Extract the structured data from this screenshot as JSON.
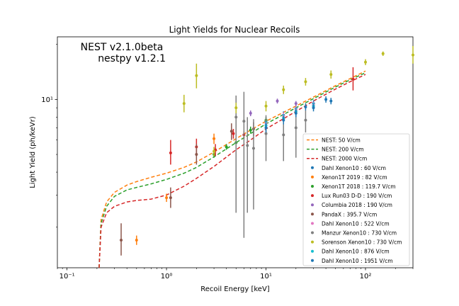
{
  "chart_data": {
    "type": "scatter",
    "title": "Light Yields for Nuclear Recoils",
    "xlabel": "Recoil Energy [keV]",
    "ylabel": "Light Yield (ph/keVr)",
    "xscale": "log",
    "yscale": "log",
    "xlim": [
      0.08,
      300
    ],
    "ylim": [
      1.2,
      22
    ],
    "x_ticks": [
      {
        "value": 0.1,
        "label": "10⁻¹"
      },
      {
        "value": 1,
        "label": "10⁰"
      },
      {
        "value": 10,
        "label": "10¹"
      },
      {
        "value": 100,
        "label": "10²"
      }
    ],
    "y_ticks": [
      {
        "value": 10,
        "label": "10¹"
      }
    ],
    "grid": false,
    "legend_position": "lower-right",
    "annotation": {
      "line1": "NEST v2.1.0beta",
      "line2": "nestpy v1.2.1"
    },
    "curves": [
      {
        "name": "NEST: 50 V/cm",
        "color": "#ff7f0e",
        "x": [
          0.21,
          0.22,
          0.25,
          0.3,
          0.4,
          0.5,
          0.7,
          1.0,
          1.5,
          2,
          3,
          5,
          7,
          10,
          20,
          30,
          50,
          70,
          100
        ],
        "y": [
          1.2,
          2.2,
          2.75,
          3.1,
          3.4,
          3.55,
          3.75,
          3.95,
          4.25,
          4.55,
          5.15,
          6.1,
          6.8,
          7.6,
          9.2,
          10.3,
          11.9,
          13.0,
          14.3
        ]
      },
      {
        "name": "NEST: 200 V/cm",
        "color": "#2ca02c",
        "x": [
          0.21,
          0.22,
          0.25,
          0.3,
          0.4,
          0.5,
          0.7,
          1.0,
          1.5,
          2,
          3,
          5,
          7,
          10,
          20,
          30,
          50,
          70,
          100
        ],
        "y": [
          1.2,
          2.1,
          2.6,
          2.95,
          3.2,
          3.3,
          3.45,
          3.65,
          3.95,
          4.25,
          4.85,
          5.8,
          6.5,
          7.35,
          9.0,
          10.1,
          11.7,
          12.8,
          14.0
        ]
      },
      {
        "name": "NEST: 2000 V/cm",
        "color": "#d62728",
        "x": [
          0.21,
          0.22,
          0.25,
          0.3,
          0.4,
          0.5,
          0.7,
          1.0,
          1.5,
          2,
          3,
          5,
          7,
          10,
          20,
          30,
          50,
          70,
          100
        ],
        "y": [
          1.2,
          2.0,
          2.4,
          2.6,
          2.75,
          2.8,
          2.85,
          3.0,
          3.35,
          3.7,
          4.3,
          5.3,
          6.0,
          6.9,
          8.6,
          9.8,
          11.4,
          12.5,
          13.7
        ]
      }
    ],
    "series": [
      {
        "name": "Dahl Xenon10 : 60 V/cm",
        "color": "#1f77b4",
        "points": [
          [
            10,
            7.6,
            7.2,
            8.0
          ],
          [
            15,
            8.2,
            7.8,
            8.6
          ],
          [
            20,
            8.9,
            8.5,
            9.3
          ],
          [
            25,
            9.1,
            8.7,
            9.5
          ],
          [
            30,
            9.5,
            9.1,
            9.9
          ],
          [
            40,
            10.0,
            9.6,
            10.4
          ]
        ]
      },
      {
        "name": "Xenon1T 2019 : 82 V/cm",
        "color": "#ff7f0e",
        "points": [
          [
            0.5,
            1.7,
            1.6,
            1.8
          ],
          [
            1.0,
            2.9,
            2.75,
            3.05
          ],
          [
            3.0,
            6.1,
            5.7,
            6.5
          ]
        ]
      },
      {
        "name": "Xenon1T 2018 : 119.7 V/cm",
        "color": "#2ca02c",
        "points": [
          [
            3.0,
            5.0,
            4.8,
            5.2
          ],
          [
            4.0,
            5.5,
            5.3,
            5.7
          ],
          [
            5.0,
            5.8,
            5.6,
            6.0
          ],
          [
            7.0,
            6.8,
            6.5,
            7.1
          ],
          [
            10.0,
            7.7,
            7.4,
            8.0
          ]
        ]
      },
      {
        "name": "Lux Run03 D-D : 190 V/cm",
        "color": "#d62728",
        "points": [
          [
            1.1,
            5.1,
            4.4,
            6.0
          ],
          [
            2.0,
            5.5,
            4.9,
            6.1
          ],
          [
            3.1,
            5.3,
            4.9,
            5.7
          ],
          [
            4.7,
            6.5,
            6.1,
            6.9
          ],
          [
            6.0,
            6.4,
            6.1,
            6.7
          ],
          [
            75,
            12.9,
            11.2,
            15.0
          ]
        ]
      },
      {
        "name": "Columbia 2018 : 190 V/cm",
        "color": "#9467bd",
        "points": [
          [
            7.0,
            8.4,
            8.1,
            8.7
          ],
          [
            13.0,
            9.8,
            9.5,
            10.1
          ],
          [
            20.0,
            9.5,
            9.2,
            9.8
          ]
        ]
      },
      {
        "name": "PandaX : 395.7 V/cm",
        "color": "#8c564b",
        "points": [
          [
            0.35,
            1.7,
            1.4,
            2.1
          ],
          [
            1.1,
            2.9,
            2.55,
            3.3
          ],
          [
            2.0,
            5.0,
            4.4,
            5.7
          ],
          [
            4.5,
            6.7,
            6.0,
            7.4
          ],
          [
            7.5,
            6.9,
            6.3,
            7.5
          ]
        ]
      },
      {
        "name": "Dahl Xenon10 : 522 V/cm",
        "color": "#e377c2",
        "points": [
          [
            10,
            7.4,
            7.0,
            7.8
          ],
          [
            15,
            8.1,
            7.7,
            8.5
          ],
          [
            20,
            8.8,
            8.4,
            9.2
          ],
          [
            30,
            9.3,
            8.9,
            9.7
          ]
        ]
      },
      {
        "name": "Manzur Xenon10 : 730 V/cm",
        "color": "#7f7f7f",
        "points": [
          [
            5.0,
            8.0,
            2.4,
            10.5
          ],
          [
            6.0,
            7.6,
            1.75,
            11.0
          ],
          [
            6.5,
            5.6,
            2.4,
            8.0
          ],
          [
            7.5,
            5.4,
            2.5,
            7.8
          ],
          [
            10.0,
            6.5,
            4.6,
            8.2
          ],
          [
            15,
            6.4,
            4.6,
            7.9
          ],
          [
            20,
            7.0,
            4.8,
            8.6
          ],
          [
            25,
            7.7,
            6.6,
            8.7
          ]
        ]
      },
      {
        "name": "Sorenson Xenon10 : 730 V/cm",
        "color": "#bcbd22",
        "points": [
          [
            1.5,
            9.5,
            8.5,
            10.6
          ],
          [
            2.0,
            13.5,
            11.5,
            15.7
          ],
          [
            3.0,
            5.2,
            4.9,
            5.5
          ],
          [
            5.0,
            9.0,
            8.4,
            9.6
          ],
          [
            10.0,
            9.2,
            8.6,
            9.8
          ],
          [
            15,
            11.3,
            10.7,
            11.9
          ],
          [
            25,
            12.5,
            11.9,
            13.1
          ],
          [
            45,
            13.7,
            13.0,
            14.4
          ],
          [
            100,
            16.0,
            15.4,
            16.6
          ],
          [
            150,
            17.8,
            17.3,
            18.3
          ],
          [
            300,
            17.5,
            15.7,
            19.6
          ]
        ]
      },
      {
        "name": "Dahl Xenon10 : 876 V/cm",
        "color": "#17becf",
        "points": [
          [
            10,
            7.2,
            6.8,
            7.6
          ],
          [
            15,
            7.9,
            7.5,
            8.3
          ],
          [
            20,
            8.6,
            8.2,
            9.0
          ],
          [
            30,
            9.2,
            8.8,
            9.6
          ]
        ]
      },
      {
        "name": "Dahl Xenon10 : 1951 V/cm",
        "color": "#1f77b4",
        "points": [
          [
            10,
            7.0,
            6.6,
            7.4
          ],
          [
            15,
            7.7,
            7.3,
            8.1
          ],
          [
            20,
            8.4,
            8.0,
            8.8
          ],
          [
            30,
            9.0,
            8.6,
            9.4
          ],
          [
            45,
            9.8,
            9.4,
            10.2
          ]
        ]
      }
    ]
  }
}
